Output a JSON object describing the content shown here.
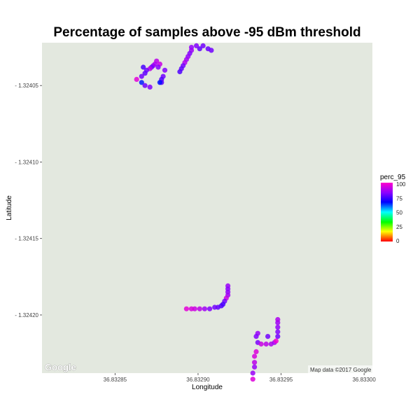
{
  "chart_data": {
    "type": "scatter",
    "title": "Percentage of samples above -95 dBm threshold",
    "xlabel": "Longitude",
    "ylabel": "Latitude",
    "xlim": [
      36.832806,
      36.833005
    ],
    "ylim": [
      -1.324238,
      -1.324022
    ],
    "x_ticks": [
      36.83285,
      36.8329,
      36.83295,
      36.833
    ],
    "x_tick_labels": [
      "36.83285",
      "36.83290",
      "36.83295",
      "36.83300"
    ],
    "y_ticks": [
      -1.32405,
      -1.3241,
      -1.32415,
      -1.3242
    ],
    "y_tick_labels": [
      "- 1.32405",
      "- 1.32410",
      "- 1.32415",
      "- 1.32420"
    ],
    "grid": false,
    "background_color": "#e3e8df",
    "legend": {
      "title": "perc_95",
      "placement": "right",
      "ticks": [
        "100",
        "75",
        "50",
        "25",
        "0"
      ],
      "range": [
        0,
        100
      ]
    },
    "map_logo": "Google",
    "attribution": "Map data ©2017 Google",
    "points": [
      {
        "x": 36.832899,
        "y": -1.324024,
        "v": 82
      },
      {
        "x": 36.832903,
        "y": -1.324024,
        "v": 80
      },
      {
        "x": 36.832896,
        "y": -1.324025,
        "v": 84
      },
      {
        "x": 36.832901,
        "y": -1.324026,
        "v": 78
      },
      {
        "x": 36.832906,
        "y": -1.324026,
        "v": 79
      },
      {
        "x": 36.832908,
        "y": -1.324027,
        "v": 80
      },
      {
        "x": 36.832896,
        "y": -1.324027,
        "v": 85
      },
      {
        "x": 36.832895,
        "y": -1.324029,
        "v": 82
      },
      {
        "x": 36.832894,
        "y": -1.324031,
        "v": 84
      },
      {
        "x": 36.832893,
        "y": -1.324033,
        "v": 86
      },
      {
        "x": 36.832892,
        "y": -1.324035,
        "v": 88
      },
      {
        "x": 36.832891,
        "y": -1.324037,
        "v": 80
      },
      {
        "x": 36.83289,
        "y": -1.324039,
        "v": 78
      },
      {
        "x": 36.832889,
        "y": -1.324041,
        "v": 76
      },
      {
        "x": 36.832875,
        "y": -1.324034,
        "v": 90
      },
      {
        "x": 36.832874,
        "y": -1.324036,
        "v": 88
      },
      {
        "x": 36.832873,
        "y": -1.324037,
        "v": 85
      },
      {
        "x": 36.832877,
        "y": -1.324036,
        "v": 92
      },
      {
        "x": 36.832872,
        "y": -1.324038,
        "v": 80
      },
      {
        "x": 36.832871,
        "y": -1.324039,
        "v": 90
      },
      {
        "x": 36.832876,
        "y": -1.324038,
        "v": 82
      },
      {
        "x": 36.832867,
        "y": -1.324038,
        "v": 75
      },
      {
        "x": 36.832869,
        "y": -1.32404,
        "v": 80
      },
      {
        "x": 36.83288,
        "y": -1.32404,
        "v": 82
      },
      {
        "x": 36.832868,
        "y": -1.324042,
        "v": 78
      },
      {
        "x": 36.832866,
        "y": -1.324044,
        "v": 80
      },
      {
        "x": 36.832879,
        "y": -1.324044,
        "v": 80
      },
      {
        "x": 36.832878,
        "y": -1.324046,
        "v": 76
      },
      {
        "x": 36.832878,
        "y": -1.324048,
        "v": 78
      },
      {
        "x": 36.832863,
        "y": -1.324046,
        "v": 96
      },
      {
        "x": 36.832866,
        "y": -1.324048,
        "v": 65
      },
      {
        "x": 36.832877,
        "y": -1.324048,
        "v": 66
      },
      {
        "x": 36.832868,
        "y": -1.32405,
        "v": 80
      },
      {
        "x": 36.832871,
        "y": -1.324051,
        "v": 82
      },
      {
        "x": 36.832918,
        "y": -1.324181,
        "v": 85
      },
      {
        "x": 36.832918,
        "y": -1.324183,
        "v": 83
      },
      {
        "x": 36.832918,
        "y": -1.324185,
        "v": 84
      },
      {
        "x": 36.832918,
        "y": -1.324187,
        "v": 86
      },
      {
        "x": 36.832917,
        "y": -1.324189,
        "v": 92
      },
      {
        "x": 36.832916,
        "y": -1.324191,
        "v": 80
      },
      {
        "x": 36.832915,
        "y": -1.324193,
        "v": 75
      },
      {
        "x": 36.832914,
        "y": -1.324194,
        "v": 76
      },
      {
        "x": 36.832912,
        "y": -1.324195,
        "v": 78
      },
      {
        "x": 36.83291,
        "y": -1.324195,
        "v": 80
      },
      {
        "x": 36.832907,
        "y": -1.324196,
        "v": 82
      },
      {
        "x": 36.832904,
        "y": -1.324196,
        "v": 86
      },
      {
        "x": 36.832901,
        "y": -1.324196,
        "v": 90
      },
      {
        "x": 36.832898,
        "y": -1.324196,
        "v": 92
      },
      {
        "x": 36.832896,
        "y": -1.324196,
        "v": 94
      },
      {
        "x": 36.832893,
        "y": -1.324196,
        "v": 96
      },
      {
        "x": 36.832936,
        "y": -1.324212,
        "v": 85
      },
      {
        "x": 36.832942,
        "y": -1.324214,
        "v": 80
      },
      {
        "x": 36.832935,
        "y": -1.324214,
        "v": 82
      },
      {
        "x": 36.832936,
        "y": -1.324218,
        "v": 81
      },
      {
        "x": 36.832938,
        "y": -1.324219,
        "v": 92
      },
      {
        "x": 36.832941,
        "y": -1.324219,
        "v": 90
      },
      {
        "x": 36.832944,
        "y": -1.324219,
        "v": 88
      },
      {
        "x": 36.832946,
        "y": -1.324218,
        "v": 86
      },
      {
        "x": 36.832947,
        "y": -1.324217,
        "v": 98
      },
      {
        "x": 36.832948,
        "y": -1.324214,
        "v": 80
      },
      {
        "x": 36.832948,
        "y": -1.324211,
        "v": 82
      },
      {
        "x": 36.832948,
        "y": -1.324208,
        "v": 84
      },
      {
        "x": 36.832948,
        "y": -1.324205,
        "v": 86
      },
      {
        "x": 36.832948,
        "y": -1.324203,
        "v": 88
      },
      {
        "x": 36.832935,
        "y": -1.324224,
        "v": 95
      },
      {
        "x": 36.832934,
        "y": -1.324227,
        "v": 94
      },
      {
        "x": 36.832934,
        "y": -1.324231,
        "v": 90
      },
      {
        "x": 36.832934,
        "y": -1.324234,
        "v": 85
      },
      {
        "x": 36.832933,
        "y": -1.324238,
        "v": 85
      },
      {
        "x": 36.832933,
        "y": -1.324242,
        "v": 95
      }
    ]
  }
}
